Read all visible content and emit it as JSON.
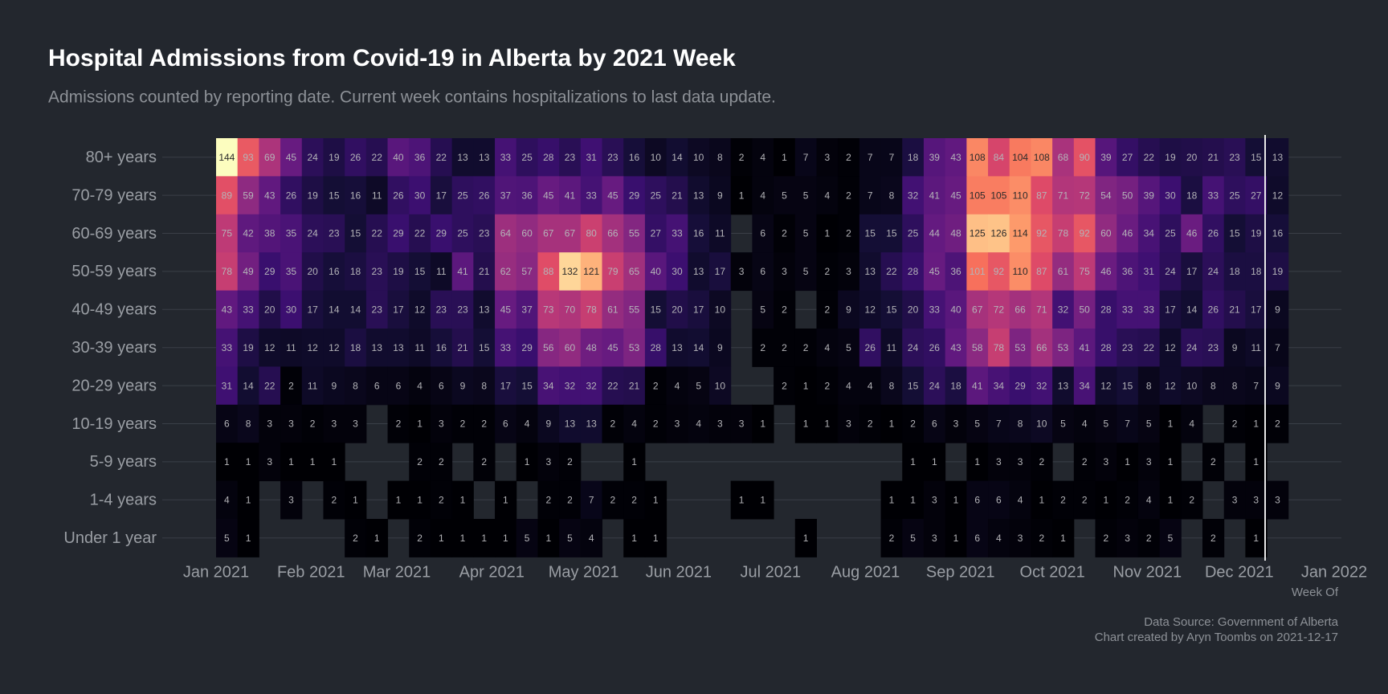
{
  "chart_data": {
    "type": "heatmap",
    "title": "Hospital Admissions from Covid-19 in Alberta by 2021 Week",
    "subtitle": "Admissions counted by reporting date. Current week contains hospitalizations to last data update.",
    "x_label": "Week Of",
    "caption": [
      "Data Source: Government of Alberta",
      "Chart created by Aryn Toombs on 2021-12-17"
    ],
    "colormap": "magma",
    "xlim": [
      "2021-01",
      "2022-01"
    ],
    "xticks": [
      {
        "value": "2021-01",
        "label": "Jan 2021"
      },
      {
        "value": "2021-02",
        "label": "Feb 2021"
      },
      {
        "value": "2021-03",
        "label": "Mar 2021"
      },
      {
        "value": "2021-04",
        "label": "Apr 2021"
      },
      {
        "value": "2021-05",
        "label": "May 2021"
      },
      {
        "value": "2021-06",
        "label": "Jun 2021"
      },
      {
        "value": "2021-07",
        "label": "Jul 2021"
      },
      {
        "value": "2021-08",
        "label": "Aug 2021"
      },
      {
        "value": "2021-09",
        "label": "Sep 2021"
      },
      {
        "value": "2021-10",
        "label": "Oct 2021"
      },
      {
        "value": "2021-11",
        "label": "Nov 2021"
      },
      {
        "value": "2021-12",
        "label": "Dec 2021"
      },
      {
        "value": "2022-01",
        "label": "Jan 2022"
      }
    ],
    "y_categories": [
      "80+ years",
      "70-79 years",
      "60-69 years",
      "50-59 years",
      "40-49 years",
      "30-39 years",
      "20-29 years",
      "10-19 years",
      "5-9 years",
      "1-4 years",
      "Under 1 year"
    ],
    "z": [
      [
        144,
        93,
        69,
        45,
        24,
        19,
        26,
        22,
        40,
        36,
        22,
        13,
        13,
        33,
        25,
        28,
        23,
        31,
        23,
        16,
        10,
        14,
        10,
        8,
        2,
        4,
        1,
        7,
        3,
        2,
        7,
        7,
        18,
        39,
        43,
        108,
        84,
        104,
        108,
        68,
        90,
        39,
        27,
        22,
        19,
        20,
        21,
        23,
        15,
        13
      ],
      [
        89,
        59,
        43,
        26,
        19,
        15,
        16,
        11,
        26,
        30,
        17,
        25,
        26,
        37,
        36,
        45,
        41,
        33,
        45,
        29,
        25,
        21,
        13,
        9,
        1,
        4,
        5,
        5,
        4,
        2,
        7,
        8,
        32,
        41,
        45,
        105,
        105,
        110,
        87,
        71,
        72,
        54,
        50,
        39,
        30,
        18,
        33,
        25,
        27,
        12
      ],
      [
        75,
        42,
        38,
        35,
        24,
        23,
        15,
        22,
        29,
        22,
        29,
        25,
        23,
        64,
        60,
        67,
        67,
        80,
        66,
        55,
        27,
        33,
        16,
        11,
        null,
        6,
        2,
        5,
        1,
        2,
        15,
        15,
        25,
        44,
        48,
        125,
        126,
        114,
        92,
        78,
        92,
        60,
        46,
        34,
        25,
        46,
        26,
        15,
        19,
        16
      ],
      [
        78,
        49,
        29,
        35,
        20,
        16,
        18,
        23,
        19,
        15,
        11,
        41,
        21,
        62,
        57,
        88,
        132,
        121,
        79,
        65,
        40,
        30,
        13,
        17,
        3,
        6,
        3,
        5,
        2,
        3,
        13,
        22,
        28,
        45,
        36,
        101,
        92,
        110,
        87,
        61,
        75,
        46,
        36,
        31,
        24,
        17,
        24,
        18,
        18,
        19
      ],
      [
        43,
        33,
        20,
        30,
        17,
        14,
        14,
        23,
        17,
        12,
        23,
        23,
        13,
        45,
        37,
        73,
        70,
        78,
        61,
        55,
        15,
        20,
        17,
        10,
        null,
        5,
        2,
        null,
        2,
        9,
        12,
        15,
        20,
        33,
        40,
        67,
        72,
        66,
        71,
        32,
        50,
        28,
        33,
        33,
        17,
        14,
        26,
        21,
        17,
        9
      ],
      [
        33,
        19,
        12,
        11,
        12,
        12,
        18,
        13,
        13,
        11,
        16,
        21,
        15,
        33,
        29,
        56,
        60,
        48,
        45,
        53,
        28,
        13,
        14,
        9,
        null,
        2,
        2,
        2,
        4,
        5,
        26,
        11,
        24,
        26,
        43,
        58,
        78,
        53,
        66,
        53,
        41,
        28,
        23,
        22,
        12,
        24,
        23,
        9,
        11,
        7
      ],
      [
        31,
        14,
        22,
        2,
        11,
        9,
        8,
        6,
        6,
        4,
        6,
        9,
        8,
        17,
        15,
        34,
        32,
        32,
        22,
        21,
        2,
        4,
        5,
        10,
        null,
        null,
        2,
        1,
        2,
        4,
        4,
        8,
        15,
        24,
        18,
        41,
        34,
        29,
        32,
        13,
        34,
        12,
        15,
        8,
        12,
        10,
        8,
        8,
        7,
        9
      ],
      [
        6,
        8,
        3,
        3,
        2,
        3,
        3,
        null,
        2,
        1,
        3,
        2,
        2,
        6,
        4,
        9,
        13,
        13,
        2,
        4,
        2,
        3,
        4,
        3,
        3,
        1,
        null,
        1,
        1,
        3,
        2,
        1,
        2,
        6,
        3,
        5,
        7,
        8,
        10,
        5,
        4,
        5,
        7,
        5,
        1,
        4,
        null,
        2,
        1,
        2
      ],
      [
        1,
        1,
        3,
        1,
        1,
        1,
        null,
        null,
        null,
        2,
        2,
        null,
        2,
        null,
        1,
        3,
        2,
        null,
        null,
        1,
        null,
        null,
        null,
        null,
        null,
        null,
        null,
        null,
        null,
        null,
        null,
        null,
        1,
        1,
        null,
        1,
        3,
        3,
        2,
        null,
        2,
        3,
        1,
        3,
        1,
        null,
        2,
        null,
        1,
        null
      ],
      [
        4,
        1,
        null,
        3,
        null,
        2,
        1,
        null,
        1,
        1,
        2,
        1,
        null,
        1,
        null,
        2,
        2,
        7,
        2,
        2,
        1,
        null,
        null,
        null,
        1,
        1,
        null,
        null,
        null,
        null,
        null,
        1,
        1,
        3,
        1,
        6,
        6,
        4,
        1,
        2,
        2,
        1,
        2,
        4,
        1,
        2,
        null,
        3,
        3,
        3
      ],
      [
        5,
        1,
        null,
        null,
        null,
        null,
        2,
        1,
        null,
        2,
        1,
        1,
        1,
        1,
        5,
        1,
        5,
        4,
        null,
        1,
        1,
        null,
        null,
        null,
        null,
        null,
        null,
        1,
        null,
        null,
        null,
        2,
        5,
        3,
        1,
        6,
        4,
        3,
        2,
        1,
        null,
        2,
        3,
        2,
        5,
        null,
        2,
        null,
        1,
        null
      ]
    ]
  }
}
